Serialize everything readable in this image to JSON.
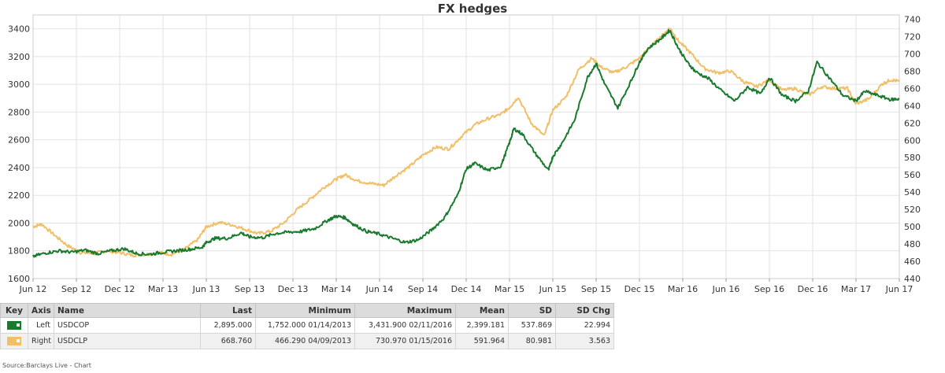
{
  "chart_data": {
    "type": "line",
    "title": "FX hedges",
    "x_ticks": [
      "Jun 12",
      "Sep 12",
      "Dec 12",
      "Mar 13",
      "Jun 13",
      "Sep 13",
      "Dec 13",
      "Mar 14",
      "Jun 14",
      "Sep 14",
      "Dec 14",
      "Mar 15",
      "Jun 15",
      "Sep 15",
      "Dec 15",
      "Mar 16",
      "Jun 16",
      "Sep 16",
      "Dec 16",
      "Mar 17",
      "Jun 17"
    ],
    "xlim": [
      0,
      20
    ],
    "left_axis": {
      "ylim": [
        1600,
        3500
      ],
      "ticks": [
        1600,
        1800,
        2000,
        2200,
        2400,
        2600,
        2800,
        3000,
        3200,
        3400
      ]
    },
    "right_axis": {
      "ylim": [
        440,
        745
      ],
      "ticks": [
        440,
        460,
        480,
        500,
        520,
        540,
        560,
        580,
        600,
        620,
        640,
        660,
        680,
        700,
        720,
        740
      ]
    },
    "series": [
      {
        "name": "USDCOP",
        "axis": "left",
        "color": "#1a7a2e",
        "x": [
          0,
          0.3,
          0.6,
          0.9,
          1.2,
          1.5,
          1.8,
          2.1,
          2.4,
          2.7,
          3.0,
          3.3,
          3.6,
          3.9,
          4.0,
          4.2,
          4.5,
          4.8,
          5.0,
          5.3,
          5.6,
          5.9,
          6.2,
          6.5,
          6.8,
          7.0,
          7.2,
          7.4,
          7.7,
          8.0,
          8.3,
          8.6,
          8.9,
          9.2,
          9.5,
          9.8,
          10.0,
          10.2,
          10.5,
          10.8,
          11.0,
          11.1,
          11.3,
          11.6,
          11.9,
          12.0,
          12.2,
          12.5,
          12.8,
          13.0,
          13.2,
          13.5,
          13.8,
          14.0,
          14.2,
          14.5,
          14.7,
          14.9,
          15.1,
          15.3,
          15.6,
          15.9,
          16.2,
          16.5,
          16.8,
          17.0,
          17.3,
          17.6,
          17.9,
          18.1,
          18.4,
          18.7,
          19.0,
          19.2,
          19.5,
          19.8,
          20.0
        ],
        "y": [
          1760,
          1785,
          1800,
          1790,
          1805,
          1780,
          1800,
          1815,
          1780,
          1775,
          1790,
          1800,
          1810,
          1825,
          1860,
          1890,
          1890,
          1930,
          1900,
          1895,
          1925,
          1935,
          1940,
          1960,
          2020,
          2050,
          2040,
          1990,
          1940,
          1920,
          1890,
          1860,
          1880,
          1950,
          2040,
          2200,
          2390,
          2430,
          2380,
          2410,
          2580,
          2680,
          2640,
          2500,
          2380,
          2480,
          2570,
          2740,
          3050,
          3150,
          3000,
          2830,
          3020,
          3160,
          3260,
          3330,
          3390,
          3260,
          3160,
          3090,
          3040,
          2950,
          2880,
          2980,
          2930,
          3050,
          2920,
          2880,
          2950,
          3160,
          3040,
          2920,
          2880,
          2950,
          2920,
          2890,
          2895
        ]
      },
      {
        "name": "USDCLP",
        "axis": "right",
        "color": "#f0bf68",
        "x": [
          0,
          0.2,
          0.5,
          0.8,
          1.1,
          1.4,
          1.7,
          2.0,
          2.3,
          2.6,
          2.9,
          3.2,
          3.5,
          3.8,
          4.0,
          4.3,
          4.6,
          4.9,
          5.2,
          5.5,
          5.8,
          6.1,
          6.4,
          6.7,
          7.0,
          7.2,
          7.5,
          7.8,
          8.1,
          8.4,
          8.7,
          9.0,
          9.3,
          9.6,
          9.9,
          10.2,
          10.5,
          10.8,
          11.0,
          11.2,
          11.5,
          11.8,
          12.0,
          12.3,
          12.6,
          12.9,
          13.1,
          13.4,
          13.7,
          14.0,
          14.3,
          14.5,
          14.7,
          14.9,
          15.2,
          15.5,
          15.8,
          16.1,
          16.4,
          16.7,
          17.0,
          17.3,
          17.6,
          17.9,
          18.2,
          18.5,
          18.8,
          19.0,
          19.3,
          19.6,
          19.8,
          20.0
        ],
        "y": [
          500,
          503,
          490,
          478,
          470,
          469,
          472,
          470,
          467,
          468,
          470,
          468,
          474,
          485,
          500,
          505,
          502,
          497,
          492,
          495,
          505,
          520,
          532,
          545,
          555,
          560,
          553,
          550,
          548,
          560,
          570,
          583,
          592,
          590,
          605,
          618,
          625,
          630,
          638,
          650,
          620,
          605,
          635,
          650,
          682,
          695,
          685,
          678,
          685,
          695,
          710,
          720,
          730,
          715,
          700,
          683,
          678,
          680,
          668,
          662,
          670,
          658,
          660,
          652,
          662,
          660,
          660,
          642,
          648,
          665,
          670,
          668
        ]
      }
    ],
    "table": {
      "headers": [
        "Key",
        "Axis",
        "Name",
        "Last",
        "Minimum",
        "Maximum",
        "Mean",
        "SD",
        "SD Chg"
      ],
      "rows": [
        {
          "color": "#1a7a2e",
          "axis": "Left",
          "name": "USDCOP",
          "last": "2,895.000",
          "minimum": "1,752.000 01/14/2013",
          "maximum": "3,431.900 02/11/2016",
          "mean": "2,399.181",
          "sd": "537.869",
          "sd_chg": "22.994"
        },
        {
          "color": "#f0bf68",
          "axis": "Right",
          "name": "USDCLP",
          "last": "668.760",
          "minimum": "466.290 04/09/2013",
          "maximum": "730.970 01/15/2016",
          "mean": "591.964",
          "sd": "80.981",
          "sd_chg": "3.563"
        }
      ]
    }
  },
  "source": "Source:Barclays Live - Chart"
}
